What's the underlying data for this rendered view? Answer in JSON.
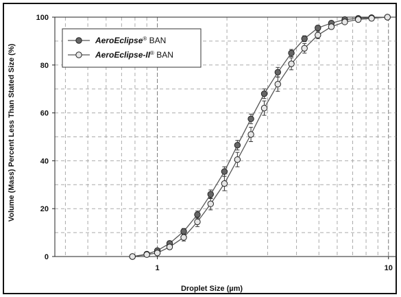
{
  "chart_data": {
    "type": "line",
    "title": "",
    "xlabel": "Droplet Size (µm)",
    "ylabel": "Volume (Mass) Percent Less Than Stated Size (%)",
    "xscale": "log",
    "xlim": [
      0.36,
      10.8
    ],
    "ylim": [
      0,
      100
    ],
    "x_ticks": [
      1,
      10
    ],
    "x_tick_labels": [
      "1",
      "10"
    ],
    "y_ticks": [
      0,
      20,
      40,
      60,
      80,
      100
    ],
    "y_tick_labels": [
      "0",
      "20",
      "40",
      "60",
      "80",
      "100"
    ],
    "grid": "dashed",
    "legend": {
      "position": "top-left",
      "entries": [
        {
          "name_main": "AeroEclipse",
          "name_sup": "®",
          "name_tail": " BAN"
        },
        {
          "name_main": "AeroEclipse-II",
          "name_sup": "®",
          "name_tail": " BAN"
        }
      ]
    },
    "x": [
      0.78,
      0.9,
      1.0,
      1.13,
      1.3,
      1.49,
      1.7,
      1.95,
      2.22,
      2.54,
      2.9,
      3.32,
      3.8,
      4.33,
      4.95,
      5.66,
      6.47,
      7.4,
      8.45,
      9.9
    ],
    "series": [
      {
        "name": "AeroEclipse® BAN",
        "color": "#666666",
        "marker": "filled-circle",
        "values": [
          0,
          1,
          2.5,
          5.5,
          10.5,
          17.5,
          26,
          35.5,
          46.5,
          57.5,
          68,
          77,
          85,
          91,
          95.5,
          97.5,
          99,
          99.5,
          99.8,
          100
        ],
        "errors": [
          0,
          0.3,
          0.5,
          1,
          1.2,
          1.5,
          1.8,
          2,
          2,
          2,
          2,
          2,
          1.5,
          1.2,
          1,
          0.8,
          0.5,
          0.3,
          0.2,
          0
        ]
      },
      {
        "name": "AeroEclipse-II® BAN",
        "color": "#bbbbbb",
        "marker": "open-circle",
        "values": [
          0,
          0.8,
          1.5,
          4,
          8,
          14.5,
          22,
          30.5,
          40.5,
          51,
          62,
          72,
          80.5,
          87,
          92.5,
          96,
          98,
          99,
          99.5,
          100
        ],
        "errors": [
          0,
          0.3,
          0.5,
          1,
          1.5,
          2,
          2.5,
          3,
          3,
          3,
          3,
          3,
          2.5,
          2,
          1.5,
          1,
          0.8,
          0.5,
          0.3,
          0
        ]
      }
    ]
  }
}
